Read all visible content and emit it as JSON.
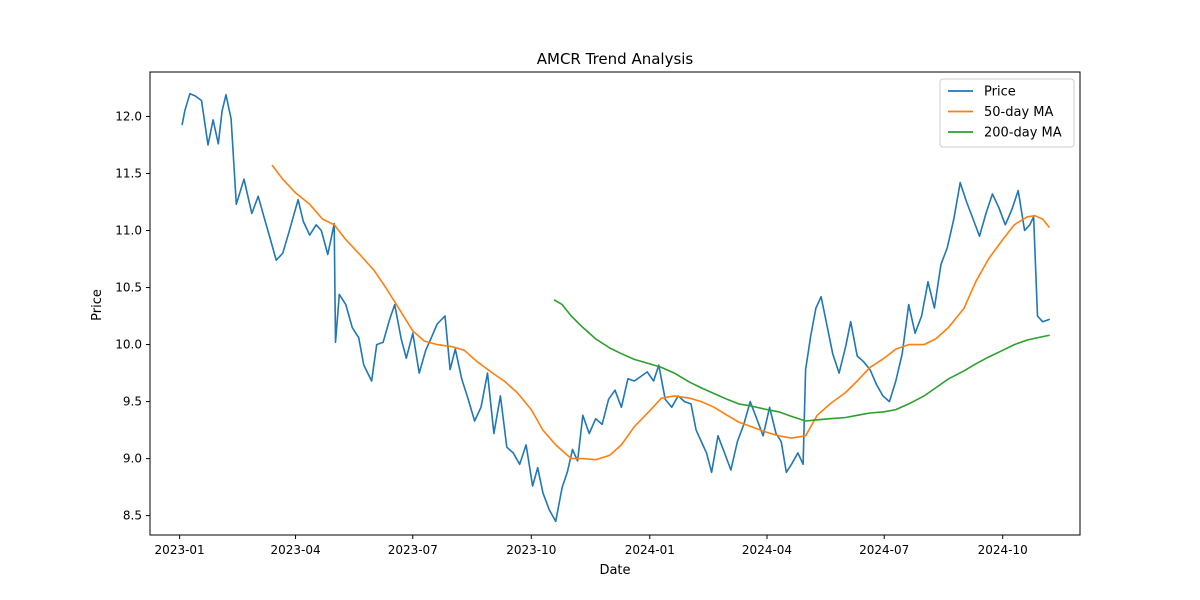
{
  "chart_data": {
    "type": "line",
    "title": "AMCR Trend Analysis",
    "xlabel": "Date",
    "ylabel": "Price",
    "x_range": [
      "2022-12-09",
      "2024-11-30"
    ],
    "ylim": [
      8.33,
      12.39
    ],
    "x_ticks": [
      {
        "date": "2023-01-01",
        "label": "2023-01"
      },
      {
        "date": "2023-04-01",
        "label": "2023-04"
      },
      {
        "date": "2023-07-01",
        "label": "2023-07"
      },
      {
        "date": "2023-10-01",
        "label": "2023-10"
      },
      {
        "date": "2024-01-01",
        "label": "2024-01"
      },
      {
        "date": "2024-04-01",
        "label": "2024-04"
      },
      {
        "date": "2024-07-01",
        "label": "2024-07"
      },
      {
        "date": "2024-10-01",
        "label": "2024-10"
      }
    ],
    "y_ticks": [
      {
        "value": 8.5,
        "label": "8.5"
      },
      {
        "value": 9.0,
        "label": "9.0"
      },
      {
        "value": 9.5,
        "label": "9.5"
      },
      {
        "value": 10.0,
        "label": "10.0"
      },
      {
        "value": 10.5,
        "label": "10.5"
      },
      {
        "value": 11.0,
        "label": "11.0"
      },
      {
        "value": 11.5,
        "label": "11.5"
      },
      {
        "value": 12.0,
        "label": "12.0"
      }
    ],
    "grid": false,
    "legend_position": "top-right",
    "series": [
      {
        "name": "Price",
        "color": "#1f77b4",
        "points": [
          [
            "2023-01-03",
            11.93
          ],
          [
            "2023-01-05",
            12.05
          ],
          [
            "2023-01-09",
            12.2
          ],
          [
            "2023-01-13",
            12.18
          ],
          [
            "2023-01-18",
            12.14
          ],
          [
            "2023-01-23",
            11.75
          ],
          [
            "2023-01-27",
            11.97
          ],
          [
            "2023-01-31",
            11.76
          ],
          [
            "2023-02-03",
            12.05
          ],
          [
            "2023-02-06",
            12.19
          ],
          [
            "2023-02-10",
            11.98
          ],
          [
            "2023-02-14",
            11.23
          ],
          [
            "2023-02-20",
            11.45
          ],
          [
            "2023-02-26",
            11.15
          ],
          [
            "2023-03-03",
            11.3
          ],
          [
            "2023-03-08",
            11.1
          ],
          [
            "2023-03-13",
            10.9
          ],
          [
            "2023-03-17",
            10.74
          ],
          [
            "2023-03-22",
            10.8
          ],
          [
            "2023-03-27",
            10.99
          ],
          [
            "2023-04-03",
            11.27
          ],
          [
            "2023-04-07",
            11.08
          ],
          [
            "2023-04-12",
            10.96
          ],
          [
            "2023-04-17",
            11.05
          ],
          [
            "2023-04-21",
            11.0
          ],
          [
            "2023-04-26",
            10.79
          ],
          [
            "2023-05-01",
            11.06
          ],
          [
            "2023-05-02",
            10.02
          ],
          [
            "2023-05-05",
            10.44
          ],
          [
            "2023-05-10",
            10.35
          ],
          [
            "2023-05-15",
            10.15
          ],
          [
            "2023-05-20",
            10.06
          ],
          [
            "2023-05-24",
            9.82
          ],
          [
            "2023-05-30",
            9.68
          ],
          [
            "2023-06-03",
            10.0
          ],
          [
            "2023-06-08",
            10.02
          ],
          [
            "2023-06-13",
            10.22
          ],
          [
            "2023-06-17",
            10.35
          ],
          [
            "2023-06-22",
            10.05
          ],
          [
            "2023-06-26",
            9.88
          ],
          [
            "2023-07-01",
            10.1
          ],
          [
            "2023-07-06",
            9.75
          ],
          [
            "2023-07-11",
            9.95
          ],
          [
            "2023-07-15",
            10.05
          ],
          [
            "2023-07-20",
            10.18
          ],
          [
            "2023-07-26",
            10.25
          ],
          [
            "2023-07-30",
            9.78
          ],
          [
            "2023-08-03",
            9.96
          ],
          [
            "2023-08-08",
            9.7
          ],
          [
            "2023-08-13",
            9.52
          ],
          [
            "2023-08-18",
            9.33
          ],
          [
            "2023-08-23",
            9.45
          ],
          [
            "2023-08-28",
            9.75
          ],
          [
            "2023-09-02",
            9.22
          ],
          [
            "2023-09-07",
            9.55
          ],
          [
            "2023-09-12",
            9.1
          ],
          [
            "2023-09-17",
            9.05
          ],
          [
            "2023-09-22",
            8.95
          ],
          [
            "2023-09-27",
            9.12
          ],
          [
            "2023-10-02",
            8.76
          ],
          [
            "2023-10-06",
            8.92
          ],
          [
            "2023-10-10",
            8.7
          ],
          [
            "2023-10-15",
            8.55
          ],
          [
            "2023-10-20",
            8.45
          ],
          [
            "2023-10-25",
            8.75
          ],
          [
            "2023-10-29",
            8.88
          ],
          [
            "2023-11-02",
            9.08
          ],
          [
            "2023-11-06",
            8.98
          ],
          [
            "2023-11-10",
            9.38
          ],
          [
            "2023-11-15",
            9.22
          ],
          [
            "2023-11-20",
            9.35
          ],
          [
            "2023-11-25",
            9.3
          ],
          [
            "2023-11-30",
            9.52
          ],
          [
            "2023-12-05",
            9.6
          ],
          [
            "2023-12-10",
            9.45
          ],
          [
            "2023-12-15",
            9.7
          ],
          [
            "2023-12-20",
            9.68
          ],
          [
            "2023-12-25",
            9.72
          ],
          [
            "2023-12-30",
            9.76
          ],
          [
            "2024-01-04",
            9.68
          ],
          [
            "2024-01-08",
            9.82
          ],
          [
            "2024-01-13",
            9.52
          ],
          [
            "2024-01-18",
            9.45
          ],
          [
            "2024-01-23",
            9.55
          ],
          [
            "2024-01-28",
            9.5
          ],
          [
            "2024-02-02",
            9.48
          ],
          [
            "2024-02-06",
            9.25
          ],
          [
            "2024-02-10",
            9.15
          ],
          [
            "2024-02-14",
            9.05
          ],
          [
            "2024-02-18",
            8.88
          ],
          [
            "2024-02-23",
            9.2
          ],
          [
            "2024-02-28",
            9.05
          ],
          [
            "2024-03-04",
            8.9
          ],
          [
            "2024-03-09",
            9.15
          ],
          [
            "2024-03-14",
            9.3
          ],
          [
            "2024-03-19",
            9.5
          ],
          [
            "2024-03-24",
            9.35
          ],
          [
            "2024-03-29",
            9.2
          ],
          [
            "2024-04-03",
            9.45
          ],
          [
            "2024-04-08",
            9.22
          ],
          [
            "2024-04-12",
            9.15
          ],
          [
            "2024-04-16",
            8.88
          ],
          [
            "2024-04-20",
            8.95
          ],
          [
            "2024-04-25",
            9.05
          ],
          [
            "2024-04-29",
            8.95
          ],
          [
            "2024-05-01",
            9.78
          ],
          [
            "2024-05-05",
            10.08
          ],
          [
            "2024-05-09",
            10.32
          ],
          [
            "2024-05-13",
            10.42
          ],
          [
            "2024-05-17",
            10.2
          ],
          [
            "2024-05-22",
            9.92
          ],
          [
            "2024-05-27",
            9.75
          ],
          [
            "2024-06-01",
            9.98
          ],
          [
            "2024-06-05",
            10.2
          ],
          [
            "2024-06-10",
            9.9
          ],
          [
            "2024-06-15",
            9.85
          ],
          [
            "2024-06-20",
            9.78
          ],
          [
            "2024-06-25",
            9.65
          ],
          [
            "2024-06-30",
            9.55
          ],
          [
            "2024-07-05",
            9.5
          ],
          [
            "2024-07-10",
            9.68
          ],
          [
            "2024-07-15",
            9.92
          ],
          [
            "2024-07-20",
            10.35
          ],
          [
            "2024-07-25",
            10.1
          ],
          [
            "2024-07-30",
            10.25
          ],
          [
            "2024-08-04",
            10.55
          ],
          [
            "2024-08-09",
            10.32
          ],
          [
            "2024-08-14",
            10.7
          ],
          [
            "2024-08-19",
            10.85
          ],
          [
            "2024-08-24",
            11.1
          ],
          [
            "2024-08-29",
            11.42
          ],
          [
            "2024-09-03",
            11.25
          ],
          [
            "2024-09-08",
            11.1
          ],
          [
            "2024-09-13",
            10.95
          ],
          [
            "2024-09-18",
            11.15
          ],
          [
            "2024-09-23",
            11.32
          ],
          [
            "2024-09-28",
            11.2
          ],
          [
            "2024-10-03",
            11.05
          ],
          [
            "2024-10-08",
            11.18
          ],
          [
            "2024-10-13",
            11.35
          ],
          [
            "2024-10-18",
            11.0
          ],
          [
            "2024-10-22",
            11.05
          ],
          [
            "2024-10-25",
            11.12
          ],
          [
            "2024-10-28",
            10.25
          ],
          [
            "2024-11-01",
            10.2
          ],
          [
            "2024-11-06",
            10.22
          ]
        ]
      },
      {
        "name": "50-day MA",
        "color": "#ff7f0e",
        "points": [
          [
            "2023-03-14",
            11.57
          ],
          [
            "2023-03-22",
            11.45
          ],
          [
            "2023-04-01",
            11.33
          ],
          [
            "2023-04-12",
            11.23
          ],
          [
            "2023-04-22",
            11.1
          ],
          [
            "2023-05-01",
            11.05
          ],
          [
            "2023-05-10",
            10.92
          ],
          [
            "2023-05-20",
            10.8
          ],
          [
            "2023-06-01",
            10.65
          ],
          [
            "2023-06-10",
            10.5
          ],
          [
            "2023-06-20",
            10.32
          ],
          [
            "2023-07-01",
            10.12
          ],
          [
            "2023-07-10",
            10.03
          ],
          [
            "2023-07-20",
            10.0
          ],
          [
            "2023-08-01",
            9.98
          ],
          [
            "2023-08-10",
            9.95
          ],
          [
            "2023-08-20",
            9.85
          ],
          [
            "2023-09-01",
            9.75
          ],
          [
            "2023-09-10",
            9.68
          ],
          [
            "2023-09-20",
            9.58
          ],
          [
            "2023-10-01",
            9.43
          ],
          [
            "2023-10-10",
            9.25
          ],
          [
            "2023-10-20",
            9.12
          ],
          [
            "2023-11-01",
            9.0
          ],
          [
            "2023-11-10",
            9.0
          ],
          [
            "2023-11-20",
            8.99
          ],
          [
            "2023-12-01",
            9.03
          ],
          [
            "2023-12-10",
            9.12
          ],
          [
            "2023-12-20",
            9.28
          ],
          [
            "2024-01-01",
            9.42
          ],
          [
            "2024-01-10",
            9.53
          ],
          [
            "2024-01-20",
            9.55
          ],
          [
            "2024-02-01",
            9.53
          ],
          [
            "2024-02-10",
            9.5
          ],
          [
            "2024-02-20",
            9.45
          ],
          [
            "2024-03-01",
            9.38
          ],
          [
            "2024-03-10",
            9.32
          ],
          [
            "2024-03-20",
            9.28
          ],
          [
            "2024-04-01",
            9.23
          ],
          [
            "2024-04-10",
            9.2
          ],
          [
            "2024-04-20",
            9.18
          ],
          [
            "2024-05-01",
            9.2
          ],
          [
            "2024-05-10",
            9.38
          ],
          [
            "2024-05-20",
            9.48
          ],
          [
            "2024-06-01",
            9.58
          ],
          [
            "2024-06-10",
            9.68
          ],
          [
            "2024-06-20",
            9.8
          ],
          [
            "2024-07-01",
            9.88
          ],
          [
            "2024-07-10",
            9.96
          ],
          [
            "2024-07-20",
            10.0
          ],
          [
            "2024-08-01",
            10.0
          ],
          [
            "2024-08-10",
            10.05
          ],
          [
            "2024-08-20",
            10.15
          ],
          [
            "2024-09-01",
            10.32
          ],
          [
            "2024-09-10",
            10.55
          ],
          [
            "2024-09-20",
            10.75
          ],
          [
            "2024-10-01",
            10.92
          ],
          [
            "2024-10-10",
            11.05
          ],
          [
            "2024-10-20",
            11.12
          ],
          [
            "2024-10-26",
            11.13
          ],
          [
            "2024-11-01",
            11.1
          ],
          [
            "2024-11-06",
            11.03
          ]
        ]
      },
      {
        "name": "200-day MA",
        "color": "#2ca02c",
        "points": [
          [
            "2023-10-19",
            10.39
          ],
          [
            "2023-10-25",
            10.35
          ],
          [
            "2023-11-01",
            10.25
          ],
          [
            "2023-11-10",
            10.15
          ],
          [
            "2023-11-20",
            10.05
          ],
          [
            "2023-12-01",
            9.97
          ],
          [
            "2023-12-10",
            9.92
          ],
          [
            "2023-12-20",
            9.87
          ],
          [
            "2024-01-01",
            9.83
          ],
          [
            "2024-01-10",
            9.8
          ],
          [
            "2024-01-20",
            9.75
          ],
          [
            "2024-02-01",
            9.67
          ],
          [
            "2024-02-10",
            9.62
          ],
          [
            "2024-02-20",
            9.57
          ],
          [
            "2024-03-01",
            9.52
          ],
          [
            "2024-03-10",
            9.48
          ],
          [
            "2024-03-20",
            9.46
          ],
          [
            "2024-04-01",
            9.43
          ],
          [
            "2024-04-10",
            9.41
          ],
          [
            "2024-04-20",
            9.37
          ],
          [
            "2024-05-01",
            9.33
          ],
          [
            "2024-05-10",
            9.34
          ],
          [
            "2024-05-20",
            9.35
          ],
          [
            "2024-06-01",
            9.36
          ],
          [
            "2024-06-10",
            9.38
          ],
          [
            "2024-06-20",
            9.4
          ],
          [
            "2024-07-01",
            9.41
          ],
          [
            "2024-07-10",
            9.43
          ],
          [
            "2024-07-20",
            9.48
          ],
          [
            "2024-08-01",
            9.55
          ],
          [
            "2024-08-10",
            9.62
          ],
          [
            "2024-08-20",
            9.7
          ],
          [
            "2024-09-01",
            9.77
          ],
          [
            "2024-09-10",
            9.83
          ],
          [
            "2024-09-20",
            9.89
          ],
          [
            "2024-10-01",
            9.95
          ],
          [
            "2024-10-10",
            10.0
          ],
          [
            "2024-10-20",
            10.04
          ],
          [
            "2024-11-01",
            10.07
          ],
          [
            "2024-11-06",
            10.08
          ]
        ]
      }
    ]
  }
}
